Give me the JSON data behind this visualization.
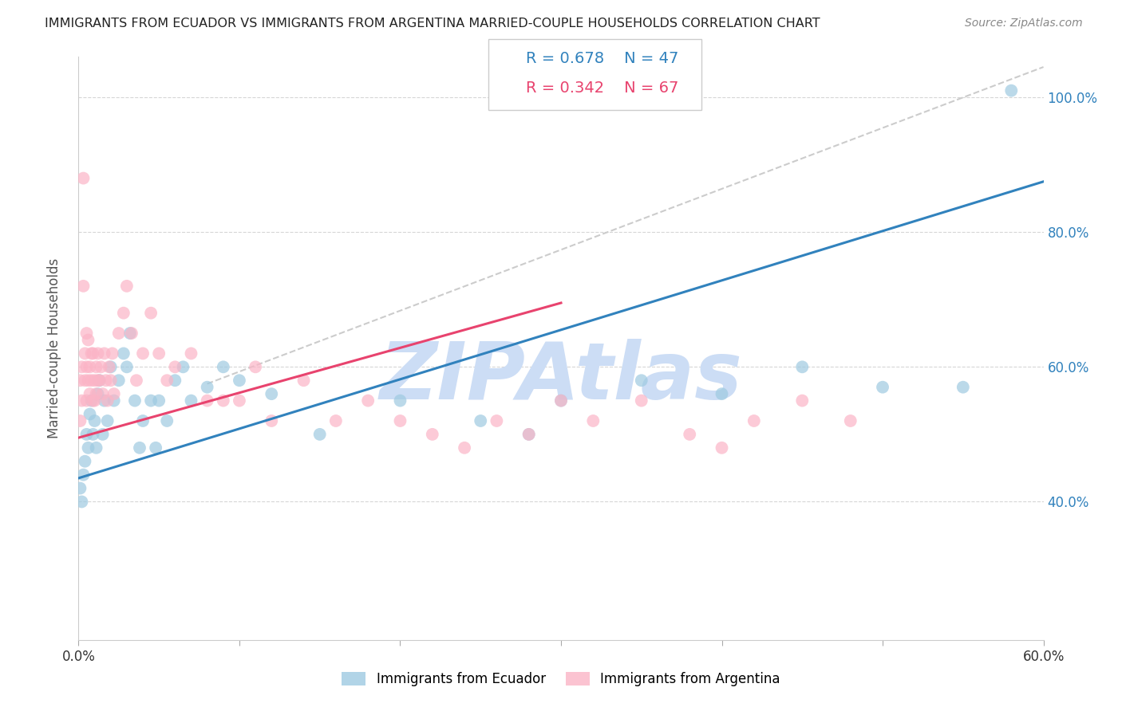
{
  "title": "IMMIGRANTS FROM ECUADOR VS IMMIGRANTS FROM ARGENTINA MARRIED-COUPLE HOUSEHOLDS CORRELATION CHART",
  "source": "Source: ZipAtlas.com",
  "ylabel": "Married-couple Households",
  "legend_r1": "R = 0.678",
  "legend_n1": "N = 47",
  "legend_r2": "R = 0.342",
  "legend_n2": "N = 67",
  "label_ecuador": "Immigrants from Ecuador",
  "label_argentina": "Immigrants from Argentina",
  "xmin": 0.0,
  "xmax": 0.6,
  "ymin": 0.195,
  "ymax": 1.06,
  "yticks": [
    0.4,
    0.6,
    0.8,
    1.0
  ],
  "color_ecuador": "#9ecae1",
  "color_argentina": "#fbb4c6",
  "color_ecuador_line": "#3182bd",
  "color_argentina_line": "#e8436e",
  "color_diag_line": "#cccccc",
  "watermark_color": "#ccddf5",
  "ecuador_line_x": [
    0.0,
    0.6
  ],
  "ecuador_line_y": [
    0.435,
    0.875
  ],
  "argentina_line_x": [
    0.0,
    0.3
  ],
  "argentina_line_y": [
    0.495,
    0.695
  ],
  "diag_line_x": [
    0.08,
    0.6
  ],
  "diag_line_y": [
    0.575,
    1.045
  ],
  "ecuador_x": [
    0.001,
    0.002,
    0.003,
    0.004,
    0.005,
    0.006,
    0.007,
    0.008,
    0.009,
    0.01,
    0.011,
    0.012,
    0.013,
    0.015,
    0.016,
    0.018,
    0.02,
    0.022,
    0.025,
    0.028,
    0.03,
    0.032,
    0.035,
    0.038,
    0.04,
    0.045,
    0.048,
    0.05,
    0.055,
    0.06,
    0.065,
    0.07,
    0.08,
    0.09,
    0.1,
    0.12,
    0.15,
    0.2,
    0.25,
    0.28,
    0.3,
    0.35,
    0.4,
    0.45,
    0.5,
    0.55,
    0.58
  ],
  "ecuador_y": [
    0.42,
    0.4,
    0.44,
    0.46,
    0.5,
    0.48,
    0.53,
    0.55,
    0.5,
    0.52,
    0.48,
    0.56,
    0.58,
    0.5,
    0.55,
    0.52,
    0.6,
    0.55,
    0.58,
    0.62,
    0.6,
    0.65,
    0.55,
    0.48,
    0.52,
    0.55,
    0.48,
    0.55,
    0.52,
    0.58,
    0.6,
    0.55,
    0.57,
    0.6,
    0.58,
    0.56,
    0.5,
    0.55,
    0.52,
    0.5,
    0.55,
    0.58,
    0.56,
    0.6,
    0.57,
    0.57,
    1.01
  ],
  "argentina_x": [
    0.001,
    0.001,
    0.002,
    0.002,
    0.003,
    0.003,
    0.004,
    0.004,
    0.005,
    0.005,
    0.005,
    0.006,
    0.006,
    0.007,
    0.007,
    0.008,
    0.008,
    0.009,
    0.009,
    0.01,
    0.01,
    0.011,
    0.011,
    0.012,
    0.012,
    0.013,
    0.014,
    0.015,
    0.016,
    0.017,
    0.018,
    0.019,
    0.02,
    0.021,
    0.022,
    0.025,
    0.028,
    0.03,
    0.033,
    0.036,
    0.04,
    0.045,
    0.05,
    0.055,
    0.06,
    0.07,
    0.08,
    0.09,
    0.1,
    0.11,
    0.12,
    0.14,
    0.16,
    0.18,
    0.2,
    0.22,
    0.24,
    0.26,
    0.28,
    0.3,
    0.32,
    0.35,
    0.38,
    0.4,
    0.42,
    0.45,
    0.48
  ],
  "argentina_y": [
    0.52,
    0.58,
    0.55,
    0.6,
    0.88,
    0.72,
    0.62,
    0.58,
    0.55,
    0.6,
    0.65,
    0.64,
    0.58,
    0.6,
    0.56,
    0.58,
    0.62,
    0.55,
    0.62,
    0.58,
    0.55,
    0.56,
    0.6,
    0.58,
    0.62,
    0.58,
    0.6,
    0.56,
    0.62,
    0.58,
    0.55,
    0.6,
    0.58,
    0.62,
    0.56,
    0.65,
    0.68,
    0.72,
    0.65,
    0.58,
    0.62,
    0.68,
    0.62,
    0.58,
    0.6,
    0.62,
    0.55,
    0.55,
    0.55,
    0.6,
    0.52,
    0.58,
    0.52,
    0.55,
    0.52,
    0.5,
    0.48,
    0.52,
    0.5,
    0.55,
    0.52,
    0.55,
    0.5,
    0.48,
    0.52,
    0.55,
    0.52
  ]
}
